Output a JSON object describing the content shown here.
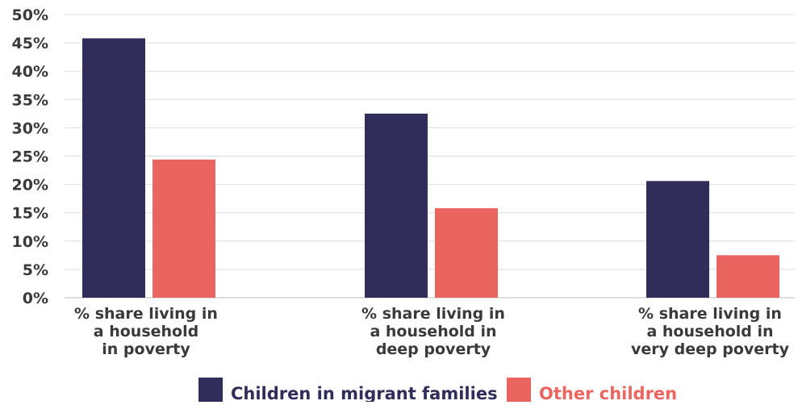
{
  "chart_data": {
    "type": "bar",
    "categories": [
      [
        "% share living in",
        "a household",
        "in poverty"
      ],
      [
        "% share living in",
        "a  household in",
        "deep poverty"
      ],
      [
        "% share living in",
        "a household in",
        "very deep poverty"
      ]
    ],
    "series": [
      {
        "name": "Children in migrant families",
        "values": [
          45.8,
          32.5,
          20.6
        ],
        "color": "#302d5a"
      },
      {
        "name": "Other children",
        "values": [
          24.4,
          15.8,
          7.5
        ],
        "color": "#ea6560"
      }
    ],
    "y_ticks": [
      "0%",
      "5%",
      "10%",
      "15%",
      "20%",
      "25%",
      "30%",
      "35%",
      "40%",
      "45%",
      "50%"
    ],
    "ylim": [
      0,
      50
    ],
    "grid": true,
    "legend": "bottom-center",
    "title": "",
    "xlabel": "",
    "ylabel": ""
  }
}
